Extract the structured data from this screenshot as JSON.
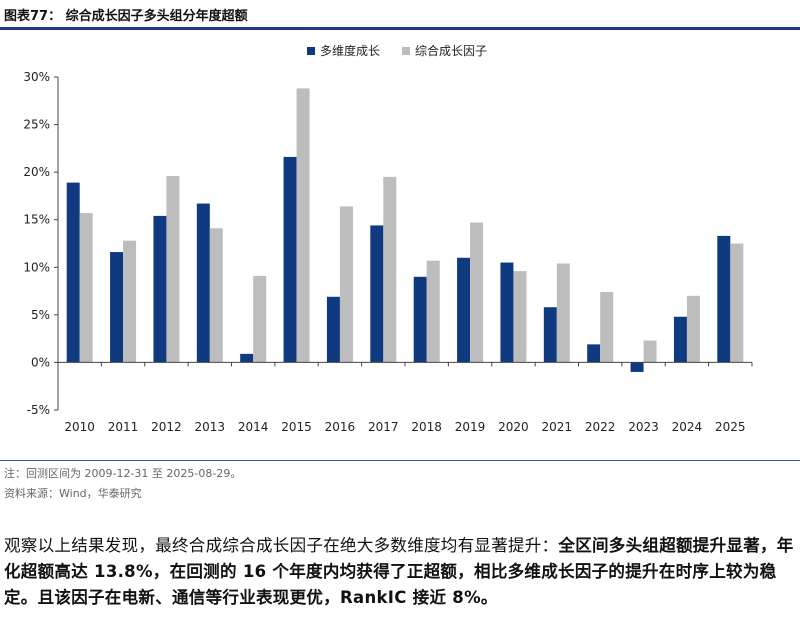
{
  "header": {
    "title": "图表77：  综合成长因子多头组分年度超额"
  },
  "chart_data": {
    "type": "bar",
    "categories": [
      "2010",
      "2011",
      "2012",
      "2013",
      "2014",
      "2015",
      "2016",
      "2017",
      "2018",
      "2019",
      "2020",
      "2021",
      "2022",
      "2023",
      "2024",
      "2025"
    ],
    "series": [
      {
        "name": "多维度成长",
        "color": "#0f3a80",
        "values": [
          18.9,
          11.6,
          15.4,
          16.7,
          0.9,
          21.6,
          6.9,
          14.4,
          9.0,
          11.0,
          10.5,
          5.8,
          1.9,
          -1.0,
          4.8,
          13.3
        ]
      },
      {
        "name": "综合成长因子",
        "color": "#bdbdbd",
        "values": [
          15.7,
          12.8,
          19.6,
          14.1,
          9.1,
          28.8,
          16.4,
          19.5,
          10.7,
          14.7,
          9.6,
          10.4,
          7.4,
          2.3,
          7.0,
          12.5
        ]
      }
    ],
    "ylim": [
      -5,
      30
    ],
    "yticks": [
      -5,
      0,
      5,
      10,
      15,
      20,
      25,
      30
    ],
    "ytick_labels": [
      "-5%",
      "0%",
      "5%",
      "10%",
      "15%",
      "20%",
      "25%",
      "30%"
    ],
    "legend_position": "top-center"
  },
  "footer": {
    "note": "注：回测区间为 2009-12-31 至 2025-08-29。",
    "source": "资料来源：Wind，华泰研究"
  },
  "body": {
    "seg1": "观察以上结果发现，最终合成综合成长因子在绝大多数维度均有显著提升：",
    "seg2": "全区间多头组超额提升显著，年化超额高达 13.8%，在回测的 16 个年度内均获得了正超额，相比多维成长因子的提升在时序上较为稳定。且该因子在电新、通信等行业表现更优，RankIC 接近 8%。"
  }
}
